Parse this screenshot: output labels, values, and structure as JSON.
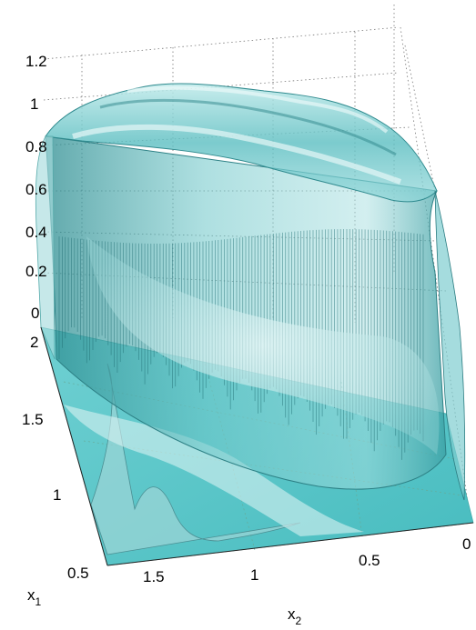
{
  "chart_data": {
    "type": "surface3d",
    "title": "",
    "axes": {
      "z": {
        "ticks": [
          "0",
          "0.2",
          "0.4",
          "0.6",
          "0.8",
          "1",
          "1.2"
        ],
        "range": [
          0,
          1.25
        ]
      },
      "x1": {
        "label": "x",
        "subscript": "1",
        "ticks": [
          "0.5",
          "1",
          "1.5",
          "2"
        ],
        "range": [
          0.5,
          2
        ]
      },
      "x2": {
        "label": "x",
        "subscript": "2",
        "ticks": [
          "1.5",
          "1",
          "0.5",
          "0"
        ],
        "range": [
          0,
          1.75
        ]
      }
    },
    "grid": true,
    "surface": {
      "color": "#5fc4c6",
      "description_height": 1.0,
      "peak_height": 1.15
    },
    "floor_color": "#4fc2c4"
  }
}
